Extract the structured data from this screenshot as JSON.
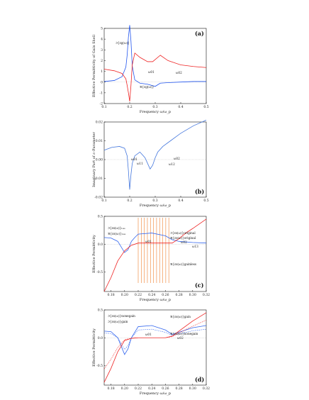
{
  "chart_data": [
    {
      "type": "line",
      "panel_label": "(a)",
      "xlabel": "Frequency ω/ω_p",
      "ylabel": "Effective Permittivity of Gain Shell",
      "xlim": [
        0.1,
        0.5
      ],
      "ylim": [
        -2,
        5
      ],
      "xticks": [
        "0.1",
        "0.2",
        "0.3",
        "0.4",
        "0.5"
      ],
      "yticks": [
        "5",
        "4",
        "3",
        "2",
        "1",
        "0",
        "-1",
        "-2"
      ],
      "annotations": [
        "ℑ{εg(ω)}",
        "ℜ{εg(ω)}",
        "ω01",
        "ω02"
      ],
      "series": [
        {
          "name": "ℑ{εg(ω)}",
          "color": "#2255ee",
          "x": [
            0.1,
            0.14,
            0.17,
            0.185,
            0.19,
            0.195,
            0.2,
            0.205,
            0.21,
            0.22,
            0.24,
            0.27,
            0.3,
            0.32,
            0.35,
            0.4,
            0.45,
            0.5
          ],
          "y": [
            0.05,
            0.15,
            0.5,
            1.4,
            2.5,
            4.2,
            5.3,
            3.8,
            1.5,
            0.2,
            -0.1,
            -0.2,
            -0.4,
            -0.1,
            -0.05,
            0.0,
            0.05,
            0.05
          ]
        },
        {
          "name": "ℜ{εg(ω)}",
          "color": "#ee2222",
          "x": [
            0.1,
            0.14,
            0.17,
            0.185,
            0.19,
            0.195,
            0.2,
            0.205,
            0.21,
            0.22,
            0.24,
            0.27,
            0.29,
            0.3,
            0.32,
            0.35,
            0.4,
            0.45,
            0.5
          ],
          "y": [
            1.2,
            1.05,
            0.8,
            0.3,
            -0.3,
            -1.0,
            -1.8,
            -0.3,
            1.6,
            2.7,
            2.3,
            1.9,
            1.9,
            2.1,
            2.5,
            2.0,
            1.6,
            1.45,
            1.35
          ]
        }
      ]
    },
    {
      "type": "line",
      "panel_label": "(b)",
      "xlabel": "Frequency ω/ω_p",
      "ylabel": "Imaginary Part of ε–Parameter",
      "xlim": [
        0.1,
        0.5
      ],
      "ylim": [
        -0.02,
        0.02
      ],
      "xticks": [
        "0.1",
        "0.2",
        "0.3",
        "0.4",
        "0.5"
      ],
      "yticks": [
        "0.02",
        "0.01",
        "0.00",
        "-0.01",
        "-0.02"
      ],
      "annotations": [
        "ω01",
        "ω02",
        "ω11",
        "ω12"
      ],
      "series": [
        {
          "name": "",
          "color": "#4477dd",
          "x": [
            0.1,
            0.13,
            0.16,
            0.18,
            0.19,
            0.195,
            0.2,
            0.205,
            0.21,
            0.22,
            0.24,
            0.26,
            0.27,
            0.28,
            0.29,
            0.3,
            0.31,
            0.33,
            0.36,
            0.4,
            0.45,
            0.5
          ],
          "y": [
            0.005,
            0.0065,
            0.007,
            0.006,
            0.002,
            -0.006,
            -0.016,
            -0.008,
            -0.002,
            0.002,
            0.004,
            0.001,
            -0.002,
            -0.005,
            -0.003,
            0.001,
            0.004,
            0.007,
            0.01,
            0.014,
            0.018,
            0.021
          ]
        }
      ]
    },
    {
      "type": "line",
      "panel_label": "(c)",
      "xlabel": "Frequency ω/ω_p",
      "ylabel": "Effective Permittivity",
      "xlim": [
        0.17,
        0.32
      ],
      "ylim": [
        -0.85,
        0.5
      ],
      "xticks": [
        "0.18",
        "0.20",
        "0.22",
        "0.24",
        "0.26",
        "0.28",
        "0.30",
        "0.32"
      ],
      "yticks": [
        "0.5",
        "0.0",
        "-0.5"
      ],
      "annotations": [
        "ℑ{εs(ω)}ₗₒₛₛ",
        "ℜ{εs(ω)}ₗₒₛₛ",
        "ℑ{εs(ω)}original",
        "ℜ{εs(ω)}original",
        "ℜ{εs(ω)}gainless",
        "ω01",
        "ω02",
        "ω13"
      ],
      "series": [
        {
          "name": "ℑ{εs(ω)} lossless",
          "color": "#3366ee",
          "x": [
            0.17,
            0.18,
            0.19,
            0.195,
            0.2,
            0.205,
            0.21,
            0.215,
            0.22,
            0.24,
            0.26,
            0.27,
            0.28,
            0.3,
            0.32
          ],
          "y": [
            0.12,
            0.11,
            0.05,
            -0.05,
            -0.15,
            -0.1,
            0.05,
            0.12,
            0.18,
            0.2,
            0.15,
            0.08,
            0.05,
            0.03,
            0.02
          ]
        },
        {
          "name": "ℜ{εs(ω)} lossless",
          "color": "#ee2222",
          "x": [
            0.17,
            0.18,
            0.19,
            0.2,
            0.21,
            0.22,
            0.24,
            0.26,
            0.27,
            0.28,
            0.29,
            0.3,
            0.32
          ],
          "y": [
            -0.85,
            -0.6,
            -0.3,
            -0.12,
            -0.02,
            0.02,
            0.02,
            0.02,
            0.02,
            0.1,
            0.2,
            0.28,
            0.45
          ]
        }
      ]
    },
    {
      "type": "line",
      "panel_label": "(d)",
      "xlabel": "Frequency ω/ω_p",
      "ylabel": "Effective Permittivity",
      "xlim": [
        0.17,
        0.32
      ],
      "ylim": [
        -0.85,
        0.5
      ],
      "xticks": [
        "0.18",
        "0.20",
        "0.22",
        "0.24",
        "0.26",
        "0.28",
        "0.30",
        "0.32"
      ],
      "yticks": [
        "0.5",
        "0.0",
        "-0.5"
      ],
      "annotations": [
        "ℑ{εs(ω)}nonegain",
        "ℑ{εs(ω)}gain",
        "ℜ{εs(ω)}gain",
        "ℜ{εs(ω)}nonegain",
        "ω01",
        "ω02"
      ],
      "series": [
        {
          "name": "ℑ{εs(ω)} gain",
          "color": "#3366ee",
          "x": [
            0.17,
            0.18,
            0.19,
            0.195,
            0.2,
            0.205,
            0.21,
            0.22,
            0.24,
            0.26,
            0.27,
            0.28,
            0.3,
            0.32
          ],
          "y": [
            0.12,
            0.11,
            0.0,
            -0.15,
            -0.3,
            -0.2,
            0.0,
            0.2,
            0.22,
            0.14,
            0.06,
            0.1,
            0.18,
            0.22
          ]
        },
        {
          "name": "ℜ{εs(ω)} gain",
          "color": "#ee2222",
          "x": [
            0.17,
            0.18,
            0.19,
            0.2,
            0.21,
            0.22,
            0.24,
            0.26,
            0.27,
            0.28,
            0.3,
            0.32
          ],
          "y": [
            -0.8,
            -0.55,
            -0.25,
            -0.05,
            -0.01,
            0.0,
            0.0,
            0.0,
            0.03,
            0.12,
            0.3,
            0.45
          ]
        }
      ]
    }
  ]
}
